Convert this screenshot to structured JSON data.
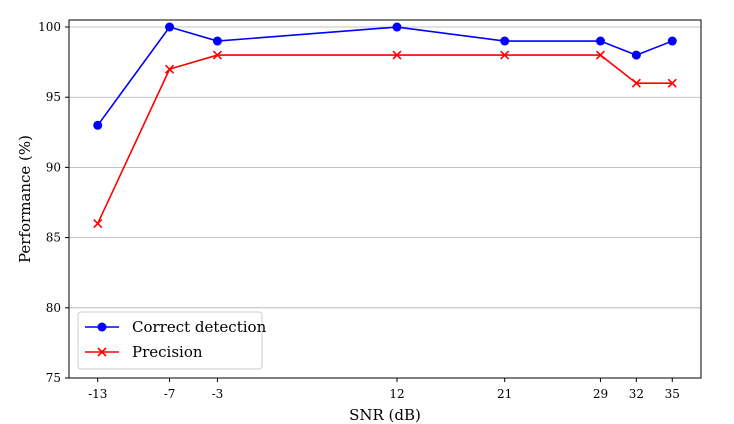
{
  "chart_data": {
    "type": "line",
    "title": "",
    "xlabel": "SNR (dB)",
    "ylabel": "Performance (%)",
    "x": [
      -13,
      -7,
      -3,
      12,
      21,
      29,
      32,
      35
    ],
    "xticks": [
      -13,
      -7,
      -3,
      12,
      21,
      29,
      32,
      35
    ],
    "xlim": [
      -15.4,
      37.4
    ],
    "ylim": [
      75,
      100.5
    ],
    "yticks": [
      75,
      80,
      85,
      90,
      95,
      100
    ],
    "grid": "horizontal",
    "legend_position": "bottom-left",
    "series": [
      {
        "name": "Correct detection",
        "values": [
          93,
          100,
          99,
          100,
          99,
          99,
          98,
          99
        ],
        "color": "#0000ff",
        "marker": "circle"
      },
      {
        "name": "Precision",
        "values": [
          86,
          97,
          98,
          98,
          98,
          98,
          96,
          96
        ],
        "color": "#ff0000",
        "marker": "x"
      }
    ]
  }
}
